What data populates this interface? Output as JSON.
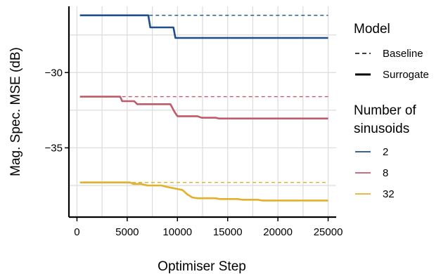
{
  "chart_data": {
    "type": "line",
    "xlabel": "Optimiser Step",
    "ylabel": "Mag. Spec. MSE (dB)",
    "xlim": [
      -800,
      25800
    ],
    "ylim": [
      -39.6,
      -25.6
    ],
    "x_ticks": [
      0,
      5000,
      10000,
      15000,
      20000,
      25000
    ],
    "x_tick_labels": [
      "0",
      "5000",
      "10000",
      "15000",
      "20000",
      "25000"
    ],
    "y_ticks": [
      -30,
      -35
    ],
    "y_tick_labels": [
      "−30",
      "−35"
    ],
    "grid": true,
    "legend_placement": "right",
    "legend": {
      "model_title": "Model",
      "model_items": [
        {
          "label": "Baseline",
          "dash": "dashed"
        },
        {
          "label": "Surrogate",
          "dash": "solid"
        }
      ],
      "sinusoids_title_line1": "Number of",
      "sinusoids_title_line2": "sinusoids",
      "sinusoids_items": [
        {
          "label": "2",
          "color": "#1f4e8c"
        },
        {
          "label": "8",
          "color": "#c05a6a"
        },
        {
          "label": "32",
          "color": "#e3b02b"
        }
      ]
    },
    "series": [
      {
        "name": "2",
        "model": "Baseline",
        "color": "#1f4e8c",
        "dash": "dashed",
        "x": [
          7200,
          25000
        ],
        "y": [
          -26.2,
          -26.2
        ]
      },
      {
        "name": "2",
        "model": "Surrogate",
        "color": "#1f4e8c",
        "dash": "solid",
        "x": [
          300,
          7100,
          7300,
          9600,
          9800,
          25000
        ],
        "y": [
          -26.2,
          -26.2,
          -27.0,
          -27.0,
          -27.7,
          -27.7
        ]
      },
      {
        "name": "8",
        "model": "Baseline",
        "color": "#c05a6a",
        "dash": "dashed",
        "x": [
          4500,
          25000
        ],
        "y": [
          -31.6,
          -31.6
        ]
      },
      {
        "name": "8",
        "model": "Surrogate",
        "color": "#c05a6a",
        "dash": "solid",
        "x": [
          300,
          4300,
          4500,
          5700,
          6000,
          9300,
          9700,
          10000,
          12000,
          12400,
          13800,
          14100,
          25000
        ],
        "y": [
          -31.6,
          -31.6,
          -31.9,
          -31.9,
          -32.1,
          -32.1,
          -32.6,
          -32.9,
          -32.9,
          -33.0,
          -33.0,
          -33.05,
          -33.05
        ]
      },
      {
        "name": "32",
        "model": "Baseline",
        "color": "#e3b02b",
        "dash": "dashed",
        "x": [
          5500,
          25000
        ],
        "y": [
          -37.3,
          -37.3
        ]
      },
      {
        "name": "32",
        "model": "Surrogate",
        "color": "#e3b02b",
        "dash": "solid",
        "x": [
          300,
          5300,
          5600,
          6400,
          7000,
          8400,
          9000,
          10500,
          11000,
          11500,
          12000,
          13800,
          14200,
          16000,
          16500,
          18000,
          18500,
          25000
        ],
        "y": [
          -37.3,
          -37.3,
          -37.4,
          -37.4,
          -37.5,
          -37.5,
          -37.6,
          -37.8,
          -38.1,
          -38.3,
          -38.35,
          -38.35,
          -38.4,
          -38.4,
          -38.45,
          -38.45,
          -38.5,
          -38.5
        ]
      }
    ]
  }
}
